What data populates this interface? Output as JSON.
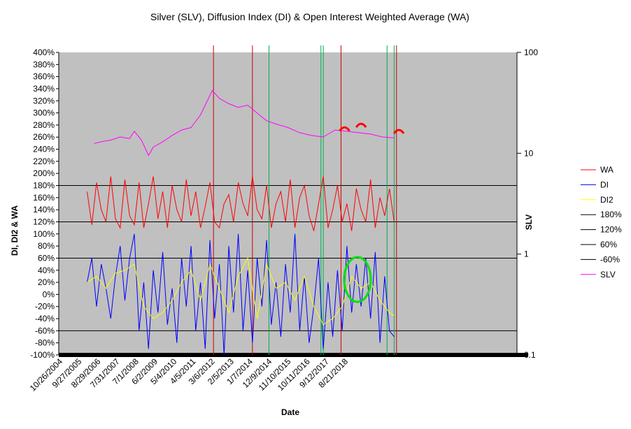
{
  "chart_data": {
    "type": "line",
    "title": "Silver (SLV), Diffusion Index (DI) & Open Interest Weighted Average (WA)",
    "xlabel": "Date",
    "ylabel": "DI, DI2 & WA",
    "y2label": "SLV",
    "ylim": [
      -100,
      400
    ],
    "y_ticks": [
      "400%",
      "380%",
      "360%",
      "340%",
      "320%",
      "300%",
      "280%",
      "260%",
      "240%",
      "220%",
      "200%",
      "180%",
      "160%",
      "140%",
      "120%",
      "100%",
      "80%",
      "60%",
      "40%",
      "20%",
      "0%",
      "-20%",
      "-40%",
      "-60%",
      "-80%",
      "-100%"
    ],
    "y2_scale": "log",
    "y2lim": [
      0.1,
      100
    ],
    "y2_ticks": [
      "100",
      "10",
      "1",
      "0.1"
    ],
    "x_ticks": [
      "10/26/2004",
      "9/27/2005",
      "8/29/2006",
      "7/31/2007",
      "7/1/2008",
      "6/2/2009",
      "5/4/2010",
      "4/5/2011",
      "3/6/2012",
      "2/5/2013",
      "1/7/2014",
      "12/9/2014",
      "11/10/2015",
      "10/11/2016",
      "9/12/2017",
      "8/21/2018"
    ],
    "horizontal_lines": [
      180,
      120,
      60,
      -60
    ],
    "legend": [
      "WA",
      "DI",
      "DI2",
      "180%",
      "120%",
      "60%",
      "-60%",
      "SLV"
    ],
    "legend_position": "right",
    "series": [
      {
        "name": "WA",
        "color": "#ff0000",
        "x": [
          2006.0,
          2006.2,
          2006.4,
          2006.6,
          2006.8,
          2007.0,
          2007.2,
          2007.4,
          2007.6,
          2007.8,
          2008.0,
          2008.2,
          2008.4,
          2008.6,
          2008.8,
          2009.0,
          2009.2,
          2009.4,
          2009.6,
          2009.8,
          2010.0,
          2010.2,
          2010.4,
          2010.6,
          2010.8,
          2011.0,
          2011.2,
          2011.4,
          2011.6,
          2011.8,
          2012.0,
          2012.2,
          2012.4,
          2012.6,
          2012.8,
          2013.0,
          2013.2,
          2013.4,
          2013.6,
          2013.8,
          2014.0,
          2014.2,
          2014.4,
          2014.6,
          2014.8,
          2015.0,
          2015.2,
          2015.4,
          2015.6,
          2015.8,
          2016.0,
          2016.2,
          2016.4,
          2016.6,
          2016.8,
          2017.0,
          2017.2,
          2017.4,
          2017.6,
          2017.8,
          2018.0,
          2018.2,
          2018.4,
          2018.6,
          2018.8,
          2019.0
        ],
        "values": [
          170,
          115,
          185,
          140,
          120,
          195,
          125,
          110,
          190,
          130,
          115,
          185,
          110,
          150,
          195,
          125,
          170,
          110,
          180,
          140,
          120,
          190,
          130,
          170,
          110,
          145,
          185,
          120,
          110,
          150,
          165,
          120,
          185,
          150,
          130,
          195,
          140,
          125,
          180,
          110,
          150,
          170,
          120,
          190,
          110,
          160,
          180,
          130,
          105,
          150,
          195,
          110,
          140,
          180,
          120,
          150,
          105,
          175,
          140,
          120,
          190,
          110,
          160,
          130,
          175,
          120
        ]
      },
      {
        "name": "DI",
        "color": "#0000ff",
        "x": [
          2006.0,
          2006.2,
          2006.4,
          2006.6,
          2006.8,
          2007.0,
          2007.2,
          2007.4,
          2007.6,
          2007.8,
          2008.0,
          2008.2,
          2008.4,
          2008.6,
          2008.8,
          2009.0,
          2009.2,
          2009.4,
          2009.6,
          2009.8,
          2010.0,
          2010.2,
          2010.4,
          2010.6,
          2010.8,
          2011.0,
          2011.2,
          2011.4,
          2011.6,
          2011.8,
          2012.0,
          2012.2,
          2012.4,
          2012.6,
          2012.8,
          2013.0,
          2013.2,
          2013.4,
          2013.6,
          2013.8,
          2014.0,
          2014.2,
          2014.4,
          2014.6,
          2014.8,
          2015.0,
          2015.2,
          2015.4,
          2015.6,
          2015.8,
          2016.0,
          2016.2,
          2016.4,
          2016.6,
          2016.8,
          2017.0,
          2017.2,
          2017.4,
          2017.6,
          2017.8,
          2018.0,
          2018.2,
          2018.4,
          2018.6,
          2018.8,
          2019.0
        ],
        "values": [
          20,
          60,
          -20,
          50,
          10,
          -40,
          30,
          80,
          -10,
          60,
          100,
          -60,
          20,
          -90,
          40,
          -30,
          70,
          -50,
          10,
          -80,
          60,
          -20,
          80,
          -60,
          20,
          -90,
          90,
          -40,
          50,
          -100,
          80,
          -30,
          100,
          -60,
          40,
          -80,
          60,
          -20,
          90,
          -50,
          20,
          -70,
          50,
          -30,
          100,
          -60,
          30,
          -80,
          -20,
          60,
          -90,
          20,
          -70,
          40,
          -60,
          80,
          -30,
          50,
          -20,
          60,
          -40,
          70,
          -80,
          30,
          -60,
          -70
        ]
      },
      {
        "name": "DI2",
        "color": "#ffff00",
        "x": [
          2006.0,
          2006.4,
          2006.8,
          2007.2,
          2007.6,
          2008.0,
          2008.4,
          2008.8,
          2009.2,
          2009.6,
          2010.0,
          2010.4,
          2010.8,
          2011.2,
          2011.6,
          2012.0,
          2012.4,
          2012.8,
          2013.2,
          2013.6,
          2014.0,
          2014.4,
          2014.8,
          2015.2,
          2015.6,
          2016.0,
          2016.4,
          2016.8,
          2017.2,
          2017.6,
          2018.0,
          2018.4,
          2018.8,
          2019.0
        ],
        "values": [
          20,
          30,
          10,
          35,
          40,
          50,
          -20,
          -40,
          -30,
          -10,
          20,
          40,
          -10,
          50,
          10,
          -30,
          30,
          60,
          -40,
          50,
          10,
          20,
          -10,
          30,
          -20,
          -50,
          -40,
          -20,
          30,
          10,
          20,
          -10,
          -30,
          -35
        ]
      },
      {
        "name": "SLV",
        "color": "#ff00ff",
        "axis": "right",
        "x": [
          2006.3,
          2006.6,
          2007.0,
          2007.4,
          2007.8,
          2008.0,
          2008.3,
          2008.6,
          2008.8,
          2009.2,
          2009.6,
          2010.0,
          2010.4,
          2010.8,
          2011.0,
          2011.3,
          2011.6,
          2012.0,
          2012.4,
          2012.8,
          2013.2,
          2013.6,
          2014.0,
          2014.5,
          2015.0,
          2015.5,
          2016.0,
          2016.5,
          2017.0,
          2017.5,
          2018.0,
          2018.5,
          2019.0
        ],
        "values": [
          12.5,
          13.0,
          13.5,
          14.5,
          14.0,
          16.5,
          13.5,
          9.5,
          11.5,
          13.0,
          15.0,
          17.0,
          18.0,
          24.0,
          30.0,
          42.0,
          35.0,
          31.0,
          28.5,
          30.0,
          25.0,
          21.0,
          19.5,
          18.0,
          16.0,
          15.0,
          14.5,
          17.0,
          16.5,
          16.0,
          15.5,
          14.5,
          14.2
        ]
      }
    ]
  }
}
